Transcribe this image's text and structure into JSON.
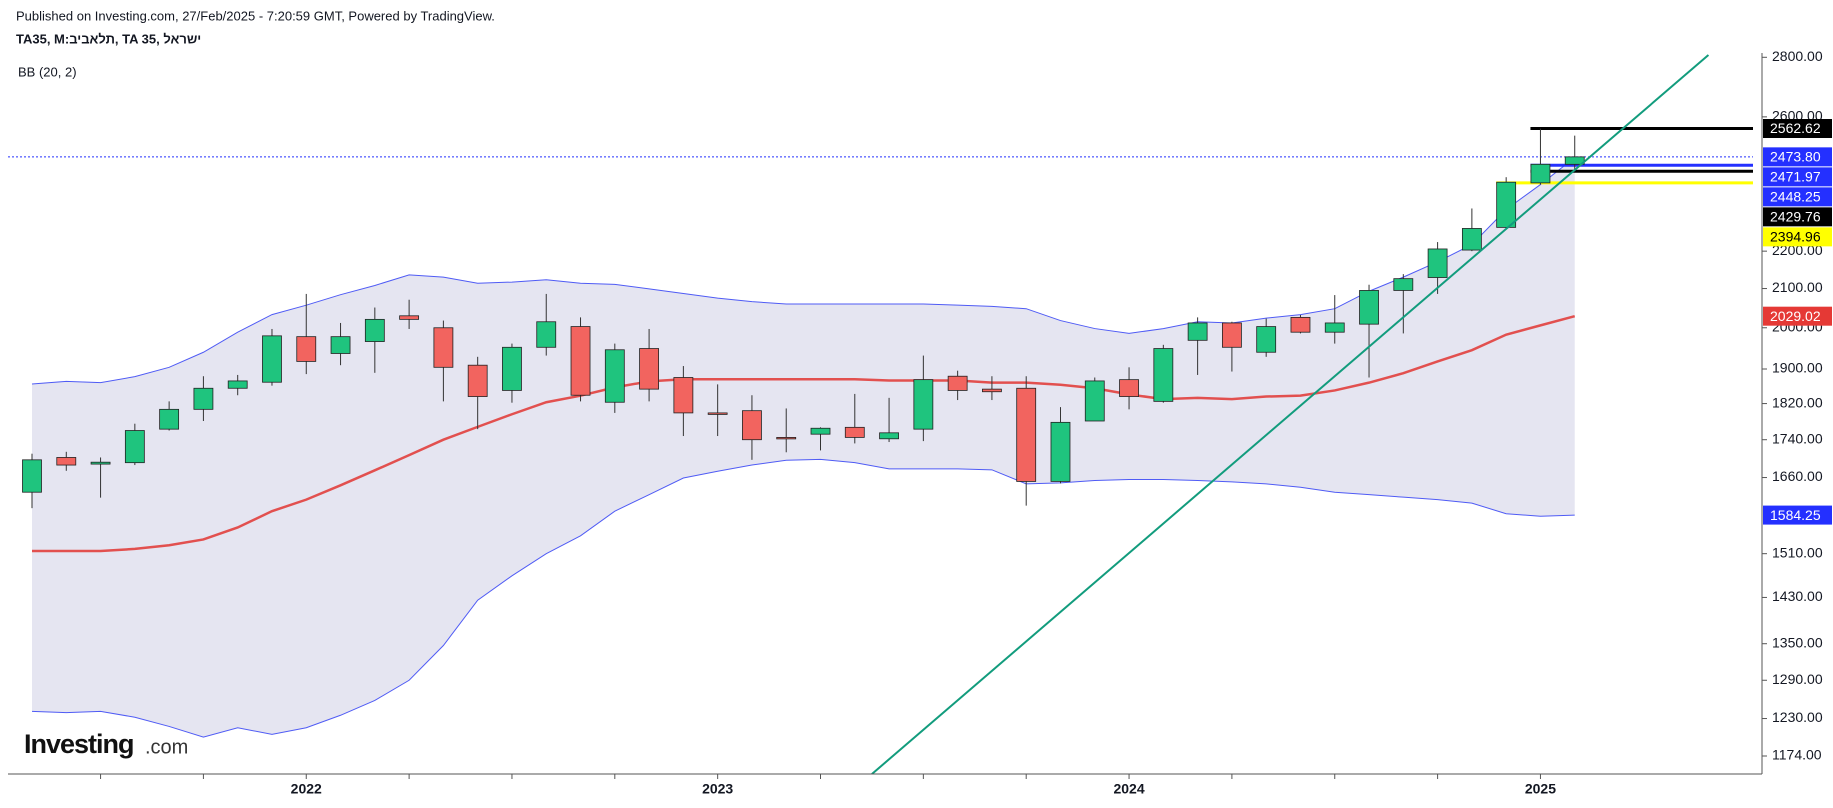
{
  "chart_data": {
    "type": "candlestick",
    "source": "Published on Investing.com, 27/Feb/2025 - 7:20:59 GMT, Powered by TradingView.",
    "title": "TA35, M:תלאביב, TA 35, ישראל",
    "indicator": "BB (20, 2)",
    "logo": {
      "name": "Investing",
      "suffix": ".com"
    },
    "categories": [
      null,
      null,
      null,
      null,
      null,
      null,
      null,
      null,
      "2022",
      null,
      null,
      null,
      null,
      null,
      null,
      null,
      null,
      null,
      null,
      null,
      "2023",
      null,
      null,
      null,
      null,
      null,
      null,
      null,
      null,
      null,
      null,
      null,
      "2024",
      null,
      null,
      null,
      null,
      null,
      null,
      null,
      null,
      null,
      null,
      null,
      "2025",
      null
    ],
    "xlim": [
      -0.7,
      50.2
    ],
    "ylim": [
      1148,
      2815
    ],
    "log_scale": true,
    "yticks": [
      {
        "value": 1174,
        "label": "1174.00"
      },
      {
        "value": 1230,
        "label": "1230.00"
      },
      {
        "value": 1290,
        "label": "1290.00"
      },
      {
        "value": 1350,
        "label": "1350.00"
      },
      {
        "value": 1430,
        "label": "1430.00"
      },
      {
        "value": 1510,
        "label": "1510.00"
      },
      {
        "value": 1660,
        "label": "1660.00"
      },
      {
        "value": 1740,
        "label": "1740.00"
      },
      {
        "value": 1820,
        "label": "1820.00"
      },
      {
        "value": 1900,
        "label": "1900.00"
      },
      {
        "value": 2000,
        "label": "2000.00"
      },
      {
        "value": 2100,
        "label": "2100.00"
      },
      {
        "value": 2200,
        "label": "2200.00"
      },
      {
        "value": 2600,
        "label": "2600.00"
      },
      {
        "value": 2800,
        "label": "2800.00"
      }
    ],
    "up_color": "#1fc47e",
    "down_color": "#f2645f",
    "ohlc": {
      "open": [
        1630,
        1702,
        1688,
        1691,
        1763,
        1807,
        1855,
        1869,
        1978,
        1937,
        1966,
        2030,
        2000,
        1909,
        1850,
        1952,
        2003,
        1823,
        1949,
        1880,
        1799,
        1804,
        1745,
        1752,
        1767,
        1742,
        1763,
        1883,
        1853,
        1855,
        1652,
        1781,
        1875,
        1825,
        1969,
        2012,
        1940,
        2026,
        1989,
        2009,
        2095,
        2129,
        2203,
        2266,
        2395,
        2451
      ],
      "high": [
        1710,
        1714,
        1702,
        1775,
        1825,
        1883,
        1886,
        1997,
        2086,
        2012,
        2051,
        2071,
        2018,
        1929,
        1961,
        2086,
        2026,
        1961,
        1997,
        1907,
        1864,
        1839,
        1809,
        1767,
        1842,
        1833,
        1932,
        1896,
        1883,
        1883,
        1812,
        1880,
        1904,
        1958,
        2026,
        2015,
        2023,
        2032,
        2083,
        2110,
        2138,
        2225,
        2320,
        2412,
        2562,
        2540
      ],
      "low": [
        1598,
        1674,
        1619,
        1686,
        1760,
        1781,
        1839,
        1861,
        1888,
        1909,
        1891,
        1997,
        1825,
        1763,
        1822,
        1932,
        1825,
        1799,
        1825,
        1748,
        1748,
        1697,
        1713,
        1717,
        1732,
        1735,
        1737,
        1828,
        1828,
        1603,
        1648,
        1781,
        1807,
        1822,
        1886,
        1894,
        1929,
        1986,
        1961,
        1880,
        1986,
        2086,
        2200,
        2263,
        2390,
        2429
      ],
      "close": [
        1697,
        1686,
        1692,
        1760,
        1807,
        1855,
        1872,
        1980,
        1918,
        1978,
        2021,
        2021,
        1904,
        1836,
        1952,
        2015,
        1839,
        1946,
        1853,
        1799,
        1797,
        1740,
        1742,
        1765,
        1745,
        1755,
        1875,
        1850,
        1847,
        1652,
        1778,
        1872,
        1836,
        1949,
        2012,
        1952,
        2003,
        1989,
        2012,
        2095,
        2126,
        2206,
        2263,
        2397,
        2451,
        2473.8
      ]
    },
    "bollinger": {
      "band_color": "#4f5bf5",
      "middle_color": "#e2504f",
      "fill": "#e5e5f1",
      "upper": [
        1865,
        1871,
        1868,
        1882,
        1904,
        1940,
        1989,
        2033,
        2057,
        2084,
        2108,
        2136,
        2130,
        2114,
        2117,
        2123,
        2114,
        2111,
        2099,
        2087,
        2075,
        2066,
        2060,
        2060,
        2060,
        2060,
        2060,
        2057,
        2054,
        2048,
        2018,
        1998,
        1986,
        1998,
        2015,
        2012,
        2024,
        2033,
        2048,
        2093,
        2130,
        2171,
        2218,
        2317,
        2390,
        2471.97
      ],
      "middle": [
        1515,
        1515,
        1515,
        1519,
        1526,
        1537,
        1560,
        1592,
        1615,
        1644,
        1675,
        1707,
        1740,
        1768,
        1796,
        1823,
        1838,
        1857,
        1871,
        1876,
        1876,
        1876,
        1876,
        1876,
        1876,
        1873,
        1873,
        1873,
        1868,
        1868,
        1863,
        1855,
        1841,
        1830,
        1833,
        1830,
        1836,
        1838,
        1850,
        1868,
        1890,
        1918,
        1945,
        1983,
        2006,
        2029.02
      ],
      "lower": [
        1241,
        1239,
        1241,
        1232,
        1218,
        1202,
        1216,
        1206,
        1216,
        1235,
        1258,
        1290,
        1347,
        1425,
        1469,
        1510,
        1544,
        1592,
        1625,
        1659,
        1673,
        1686,
        1696,
        1698,
        1691,
        1678,
        1678,
        1678,
        1676,
        1647,
        1649,
        1654,
        1656,
        1656,
        1654,
        1651,
        1647,
        1640,
        1630,
        1625,
        1620,
        1615,
        1608,
        1587,
        1582,
        1584.25
      ]
    },
    "trendline": {
      "color": "#129c7d",
      "x": [
        24.5,
        48.9
      ],
      "values": [
        1148,
        2808
      ]
    },
    "levels": [
      {
        "value": 2562.62,
        "label": "2562.62",
        "color": "#000000",
        "text_color": "#ffffff",
        "from": 44
      },
      {
        "value": 2473.8,
        "label": "2473.80",
        "color": "#2430ff",
        "text_color": "#ffffff",
        "from": 0,
        "style": "dotted"
      },
      {
        "value": 2471.97,
        "label": "2471.97",
        "color": "#2430ff",
        "text_color": "#ffffff"
      },
      {
        "value": 2448.25,
        "label": "2448.25",
        "color": "#2430ff",
        "text_color": "#ffffff",
        "from": 44
      },
      {
        "value": 2429.76,
        "label": "2429.76",
        "color": "#000000",
        "text_color": "#ffffff",
        "from": 44
      },
      {
        "value": 2394.96,
        "label": "2394.96",
        "color": "#ffff00",
        "text_color": "#000000",
        "from": 43
      },
      {
        "value": 2029.02,
        "label": "2029.02",
        "color": "#e53935",
        "text_color": "#ffffff"
      },
      {
        "value": 1584.25,
        "label": "1584.25",
        "color": "#2430ff",
        "text_color": "#ffffff"
      }
    ]
  }
}
